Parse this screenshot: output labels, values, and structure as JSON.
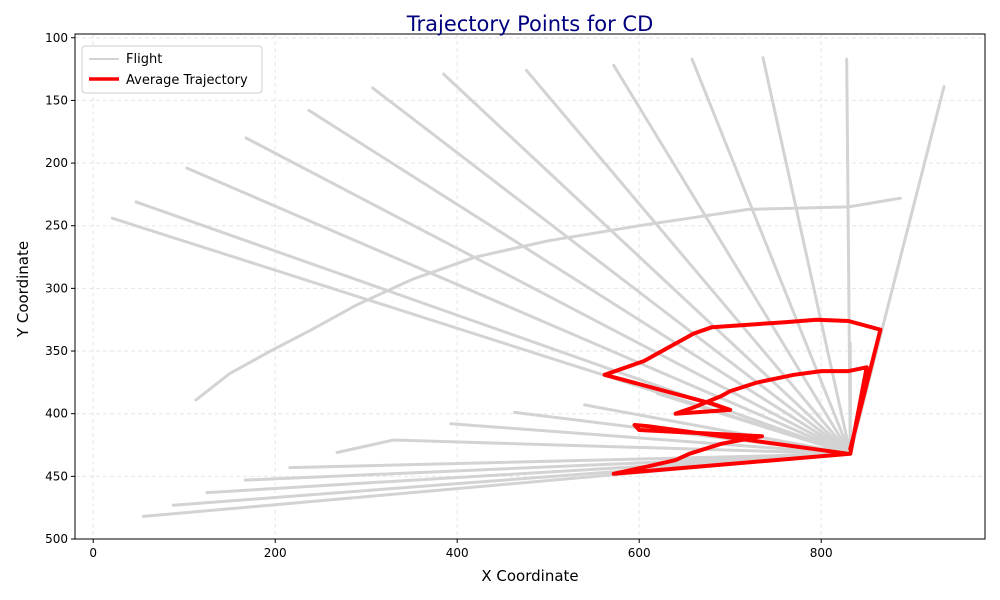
{
  "chart_data": {
    "type": "line",
    "title": "Trajectory Points for CD",
    "xlabel": "X Coordinate",
    "ylabel": "Y Coordinate",
    "xlim": [
      -20,
      980
    ],
    "ylim": [
      500,
      97
    ],
    "y_inverted": true,
    "x_ticks": [
      0,
      200,
      400,
      600,
      800
    ],
    "y_ticks": [
      100,
      150,
      200,
      250,
      300,
      350,
      400,
      450,
      500
    ],
    "grid": true,
    "legend_position": "top-left",
    "legend": [
      {
        "label": "Flight",
        "color": "#d3d3d3"
      },
      {
        "label": "Average Trajectory",
        "color": "#ff0000"
      }
    ],
    "flight_color": "#d3d3d3",
    "average_color": "#ff0000",
    "flights": [
      {
        "points": [
          [
            832,
            432
          ],
          [
            935,
            139
          ]
        ]
      },
      {
        "points": [
          [
            832,
            432
          ],
          [
            828,
            117
          ]
        ]
      },
      {
        "points": [
          [
            832,
            432
          ],
          [
            736,
            116
          ]
        ]
      },
      {
        "points": [
          [
            832,
            432
          ],
          [
            658,
            117
          ]
        ]
      },
      {
        "points": [
          [
            832,
            432
          ],
          [
            572,
            122
          ]
        ]
      },
      {
        "points": [
          [
            832,
            432
          ],
          [
            476,
            126
          ]
        ]
      },
      {
        "points": [
          [
            832,
            432
          ],
          [
            385,
            129
          ]
        ]
      },
      {
        "points": [
          [
            832,
            432
          ],
          [
            307,
            140
          ]
        ]
      },
      {
        "points": [
          [
            832,
            432
          ],
          [
            237,
            158
          ]
        ]
      },
      {
        "points": [
          [
            832,
            432
          ],
          [
            168,
            180
          ]
        ]
      },
      {
        "points": [
          [
            832,
            432
          ],
          [
            103,
            204
          ]
        ]
      },
      {
        "points": [
          [
            832,
            432
          ],
          [
            47,
            231
          ]
        ]
      },
      {
        "points": [
          [
            832,
            432
          ],
          [
            21,
            244
          ]
        ]
      },
      {
        "points": [
          [
            832,
            432
          ],
          [
            832,
            344
          ]
        ]
      },
      {
        "points": [
          [
            832,
            432
          ],
          [
            620,
            384
          ]
        ]
      },
      {
        "points": [
          [
            832,
            432
          ],
          [
            540,
            393
          ]
        ]
      },
      {
        "points": [
          [
            832,
            432
          ],
          [
            463,
            399
          ]
        ]
      },
      {
        "points": [
          [
            832,
            432
          ],
          [
            393,
            408
          ]
        ]
      },
      {
        "points": [
          [
            832,
            432
          ],
          [
            330,
            421
          ],
          [
            268,
            431
          ]
        ]
      },
      {
        "points": [
          [
            832,
            432
          ],
          [
            216,
            443
          ]
        ]
      },
      {
        "points": [
          [
            832,
            432
          ],
          [
            167,
            453
          ]
        ]
      },
      {
        "points": [
          [
            832,
            432
          ],
          [
            125,
            463
          ]
        ]
      },
      {
        "points": [
          [
            832,
            432
          ],
          [
            88,
            473
          ]
        ]
      },
      {
        "points": [
          [
            832,
            432
          ],
          [
            55,
            482
          ]
        ]
      },
      {
        "points": [
          [
            113,
            389
          ],
          [
            150,
            368
          ],
          [
            195,
            350
          ],
          [
            240,
            333
          ],
          [
            290,
            313
          ],
          [
            350,
            293
          ],
          [
            420,
            275
          ],
          [
            500,
            262
          ],
          [
            600,
            250
          ],
          [
            720,
            237
          ],
          [
            830,
            235
          ],
          [
            887,
            228
          ]
        ]
      }
    ],
    "average_trajectory": [
      [
        832,
        428
      ],
      [
        865,
        333
      ],
      [
        830,
        326
      ],
      [
        795,
        325
      ],
      [
        760,
        327
      ],
      [
        680,
        331
      ],
      [
        660,
        336
      ],
      [
        635,
        346
      ],
      [
        605,
        358
      ],
      [
        562,
        369
      ],
      [
        680,
        392
      ],
      [
        700,
        397
      ],
      [
        640,
        400
      ],
      [
        660,
        395
      ],
      [
        690,
        386
      ],
      [
        700,
        382
      ],
      [
        730,
        375
      ],
      [
        770,
        369
      ],
      [
        800,
        366
      ],
      [
        830,
        366
      ],
      [
        850,
        363
      ],
      [
        832,
        432
      ],
      [
        572,
        448
      ],
      [
        610,
        442
      ],
      [
        640,
        437
      ],
      [
        655,
        432
      ],
      [
        690,
        424
      ],
      [
        735,
        418
      ],
      [
        600,
        413
      ],
      [
        595,
        409
      ],
      [
        610,
        410
      ],
      [
        830,
        432
      ]
    ]
  }
}
